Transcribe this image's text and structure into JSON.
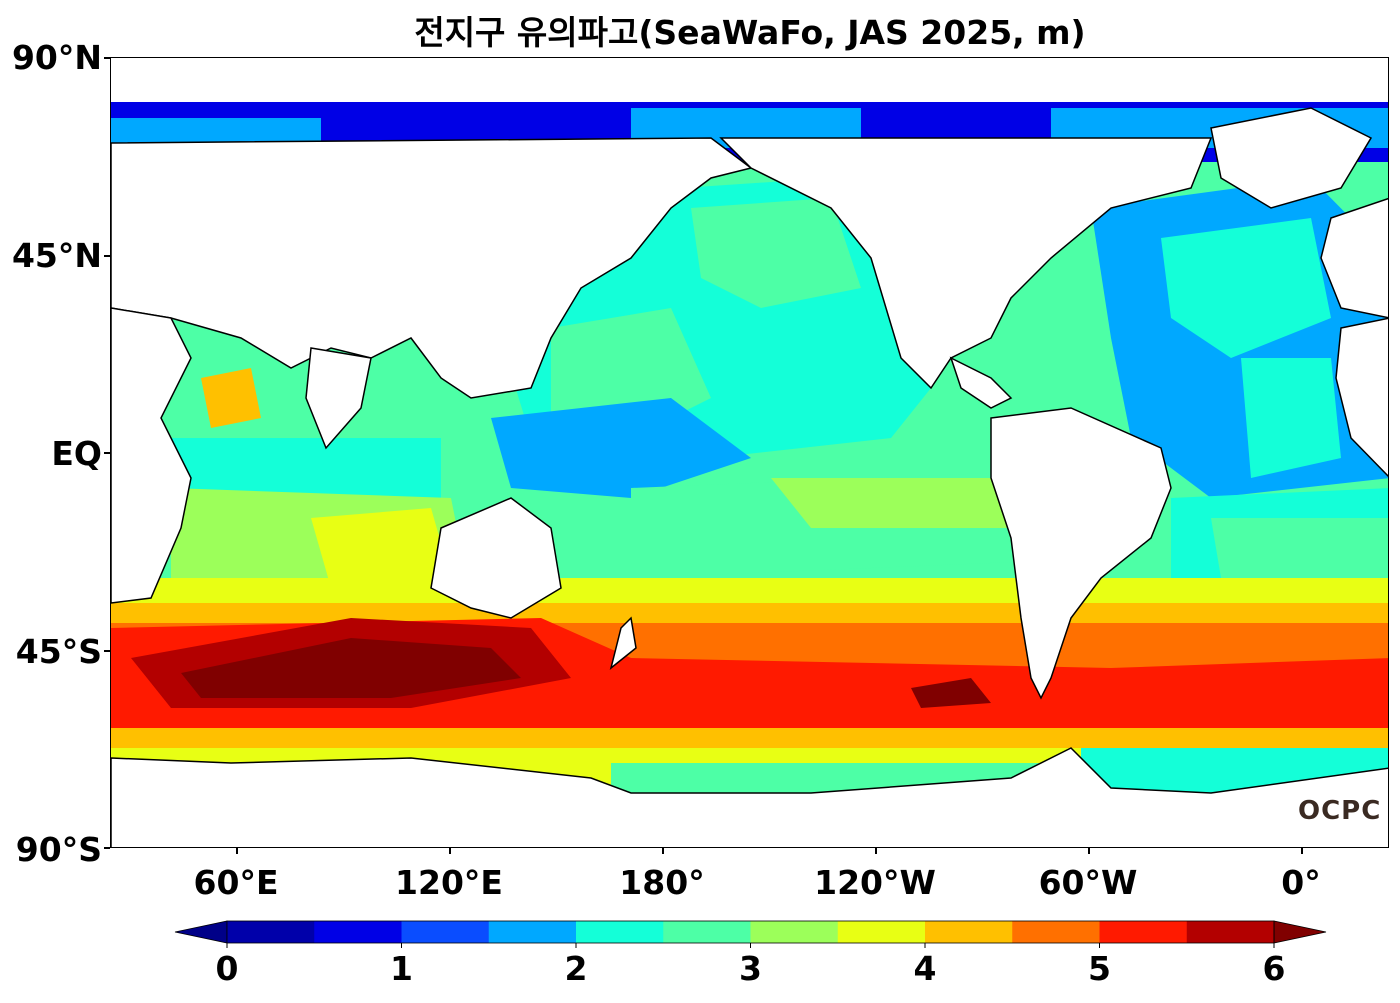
{
  "title": "전지구 유의파고(SeaWaFo, JAS 2025, m)",
  "lat_labels": [
    "90°N",
    "45°N",
    "EQ",
    "45°S",
    "90°S"
  ],
  "lon_labels": [
    "60°E",
    "120°E",
    "180°",
    "120°W",
    "60°W",
    "0°"
  ],
  "logo_text": "OCPC",
  "colorbar": {
    "ticks": [
      "0",
      "1",
      "2",
      "3",
      "4",
      "5",
      "6"
    ],
    "levels": [
      0,
      0.5,
      1,
      1.5,
      2,
      2.5,
      3,
      3.5,
      4,
      4.5,
      5,
      5.5,
      6
    ],
    "colors": [
      "#0000aa",
      "#0000e6",
      "#0a4dff",
      "#00a8ff",
      "#14ffd8",
      "#4dffa6",
      "#9cff5a",
      "#e8ff14",
      "#ffc000",
      "#ff7000",
      "#ff1a00",
      "#b30000"
    ],
    "under_color": "#000088",
    "over_color": "#800000",
    "extend": "both"
  },
  "map": {
    "projection": "equirectangular",
    "central_longitude": "0°",
    "lon_range": "-ish 25°E to 20°E (wrapped)",
    "lat_range": [
      -90,
      90
    ],
    "land_color": "#ffffff",
    "coastline_color": "#000000"
  }
}
